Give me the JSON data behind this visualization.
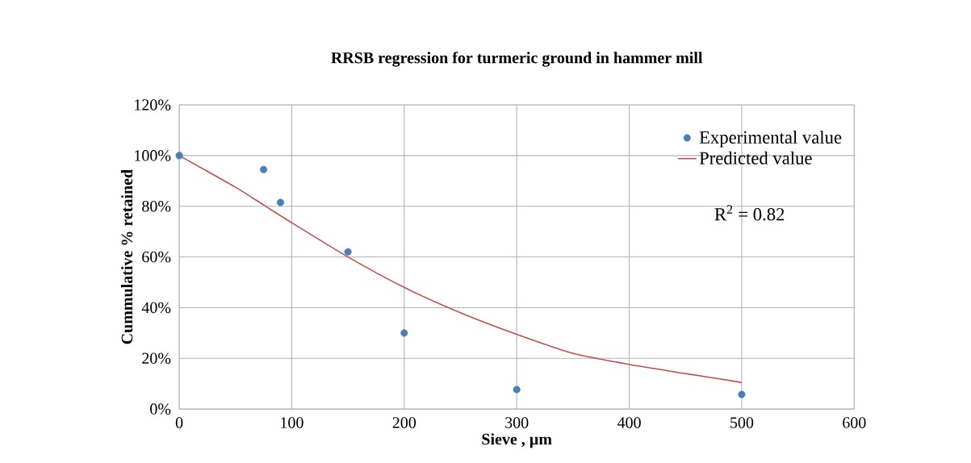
{
  "chart_data": {
    "type": "scatter",
    "title": "RRSB regression for turmeric ground in hammer mill",
    "xlabel": "Sieve , µm",
    "ylabel": "Cummulative % retained",
    "xlim": [
      0,
      600
    ],
    "xticks": [
      0,
      100,
      200,
      300,
      400,
      500,
      600
    ],
    "ylim": [
      0,
      120
    ],
    "yticks": [
      {
        "value": 0,
        "label": "0%"
      },
      {
        "value": 20,
        "label": "20%"
      },
      {
        "value": 40,
        "label": "40%"
      },
      {
        "value": 60,
        "label": "60%"
      },
      {
        "value": 80,
        "label": "80%"
      },
      {
        "value": 100,
        "label": "100%"
      },
      {
        "value": 120,
        "label": "120%"
      }
    ],
    "grid": true,
    "legend": "top right",
    "annotations": [
      "R$^{2}$ = 0.82"
    ],
    "series": [
      {
        "name": "Experimental value",
        "marker": "circle",
        "color": "#4a7ebb",
        "x": [
          0,
          75,
          90,
          150,
          200,
          300,
          500
        ],
        "values": [
          100,
          94.5,
          81.5,
          62,
          30,
          7.7,
          5.8
        ]
      },
      {
        "name": "Predicted value",
        "type": "line",
        "marker": "none",
        "color": "#c0504d",
        "x": [
          0,
          50,
          75,
          100,
          150,
          200,
          250,
          300,
          350,
          400,
          450,
          500
        ],
        "values": [
          100,
          87.5,
          80.5,
          73.5,
          60,
          48,
          38,
          29.5,
          22,
          17.6,
          14,
          10.5
        ]
      }
    ]
  }
}
